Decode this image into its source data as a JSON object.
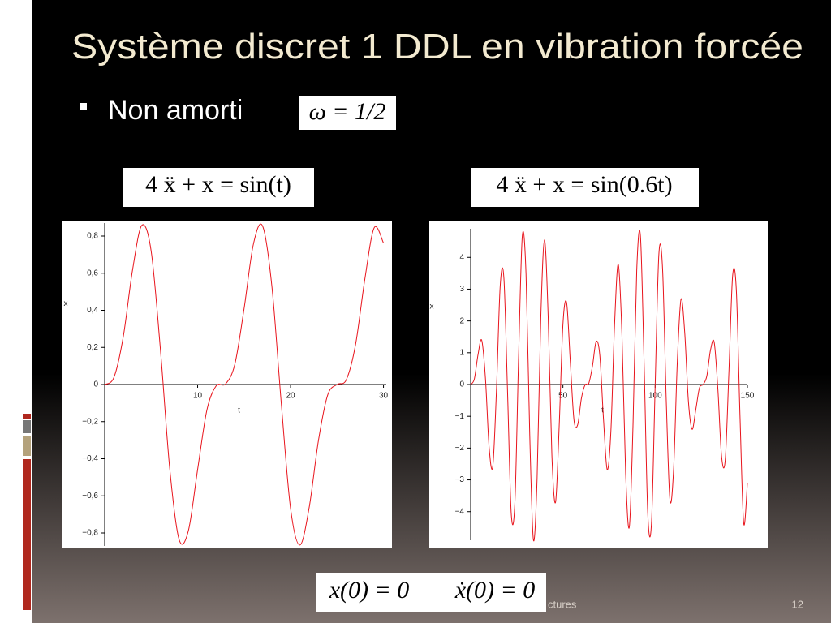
{
  "slide": {
    "title": "Système discret  1 DDL en vibration forcée",
    "bullet": "Non amorti",
    "omega": "ω = 1/2",
    "equations": [
      "4 ẍ + x = sin(t)",
      "4 ẍ + x = sin(0.6t)"
    ],
    "initial_conditions": [
      "x(0) = 0",
      "ẋ(0) = 0"
    ],
    "footer": "ctures",
    "page_number": "12"
  },
  "chart_data": [
    {
      "type": "line",
      "x_label": "t",
      "y_label": "x",
      "x": [
        0,
        1,
        2,
        3,
        4,
        5,
        6,
        7,
        8,
        9,
        10,
        11,
        12,
        13,
        14,
        15,
        16,
        17,
        18,
        19,
        20,
        21,
        22,
        23,
        24,
        25,
        26,
        27,
        28,
        29,
        30
      ],
      "series": [
        {
          "color": "#e8141c",
          "values": [
            0,
            0.039,
            0.258,
            0.618,
            0.858,
            0.719,
            0.187,
            -0.453,
            -0.834,
            -0.789,
            -0.458,
            -0.137,
            -0.007,
            0.003,
            0.108,
            0.409,
            0.756,
            0.853,
            0.525,
            -0.1,
            -0.667,
            -0.865,
            -0.664,
            -0.302,
            -0.056,
            0,
            0.026,
            0.217,
            0.57,
            0.845,
            0.763
          ]
        }
      ],
      "xlim": [
        0,
        30.3
      ],
      "ylim": [
        -0.87,
        0.87
      ],
      "xticks": [
        10,
        20,
        30
      ],
      "yticks": [
        {
          "value": -0.8,
          "label": "−0,8"
        },
        {
          "value": -0.6,
          "label": "−0,6"
        },
        {
          "value": -0.4,
          "label": "−0,4"
        },
        {
          "value": -0.2,
          "label": "−0,2"
        },
        0,
        {
          "value": 0.2,
          "label": "0,2"
        },
        {
          "value": 0.4,
          "label": "0,4"
        },
        {
          "value": 0.6,
          "label": "0,6"
        },
        {
          "value": 0.8,
          "label": "0,8"
        }
      ],
      "grid": false
    },
    {
      "type": "line",
      "x_label": "t",
      "y_label": "x",
      "x": [
        0,
        2,
        4,
        6,
        8,
        10,
        12,
        14,
        16,
        18,
        20,
        22,
        24,
        26,
        28,
        30,
        32,
        34,
        36,
        38,
        40,
        42,
        44,
        46,
        48,
        50,
        52,
        54,
        56,
        58,
        60,
        62,
        64,
        66,
        68,
        70,
        72,
        74,
        76,
        78,
        80,
        82,
        84,
        86,
        88,
        90,
        92,
        94,
        96,
        98,
        100,
        102,
        104,
        106,
        108,
        110,
        112,
        114,
        116,
        118,
        120,
        122,
        124,
        126,
        128,
        130,
        132,
        134,
        136,
        138,
        140,
        142,
        144,
        146,
        148,
        150
      ],
      "series": [
        {
          "color": "#e8141c",
          "values": [
            0,
            0.177,
            0.944,
            1.391,
            0.2,
            -1.98,
            -2.566,
            -0.151,
            3.094,
            3.354,
            -0.264,
            -4.073,
            -3.664,
            0.918,
            4.676,
            3.48,
            -1.554,
            -4.888,
            -2.966,
            2.078,
            4.548,
            2.141,
            -2.198,
            -3.704,
            -1.267,
            1.885,
            2.573,
            0.715,
            -1.12,
            -1.264,
            -0.44,
            -0.011,
            0.037,
            0.577,
            1.351,
            0.915,
            -1.101,
            -2.678,
            -1.463,
            1.905,
            3.78,
            1.557,
            -2.805,
            -4.478,
            -1.246,
            3.59,
            4.678,
            0.674,
            -4.07,
            -4.368,
            -0.023,
            4.096,
            3.645,
            -0.499,
            -3.62,
            -2.666,
            0.719,
            2.68,
            1.648,
            -0.521,
            -1.407,
            -0.796,
            -0.106,
            0,
            0.268,
            1.087,
            1.325,
            -0.153,
            -2.265,
            -2.358,
            0.444,
            3.432,
            2.965,
            -1.035,
            -4.371,
            -3.09
          ]
        }
      ],
      "xlim": [
        0,
        150
      ],
      "ylim": [
        -4.9,
        4.9
      ],
      "xticks": [
        50,
        100,
        150
      ],
      "yticks": [
        {
          "value": -4,
          "label": "−4"
        },
        {
          "value": -3,
          "label": "−3"
        },
        {
          "value": -2,
          "label": "−2"
        },
        {
          "value": -1,
          "label": "−1"
        },
        0,
        1,
        2,
        3,
        4
      ],
      "grid": false
    }
  ]
}
